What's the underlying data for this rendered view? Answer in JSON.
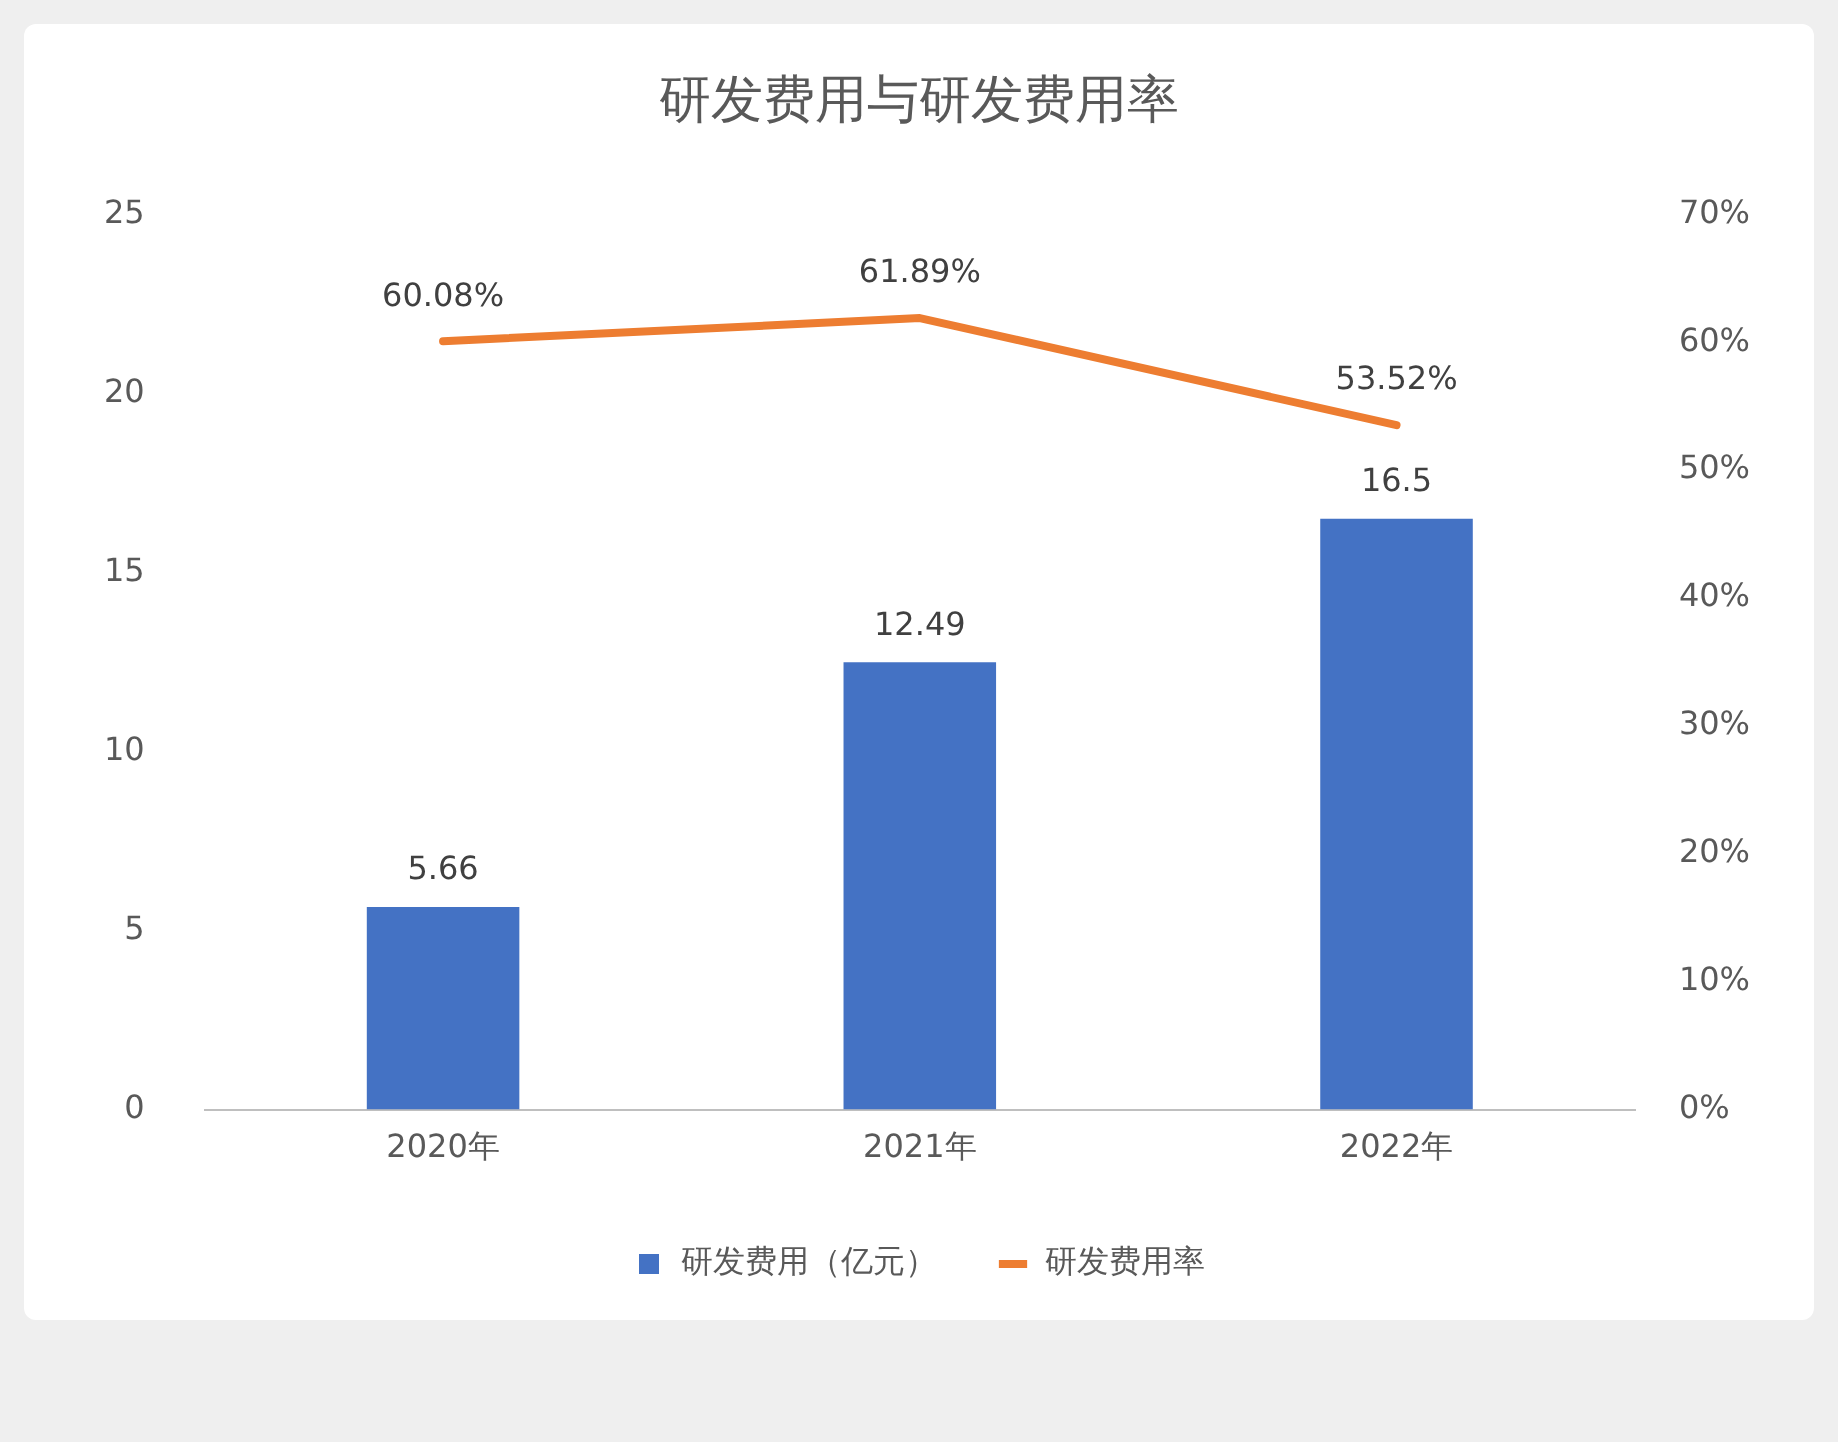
{
  "chart_data": {
    "type": "bar",
    "title": "研发费用与研发费用率",
    "categories": [
      "2020年",
      "2021年",
      "2022年"
    ],
    "series": [
      {
        "name": "研发费用（亿元）",
        "color": "#4472c4",
        "values": [
          5.66,
          12.49,
          16.5
        ],
        "value_labels": [
          "5.66",
          "12.49",
          "16.5"
        ]
      },
      {
        "name": "研发费用率",
        "type": "line",
        "axis": "y2",
        "color": "#ed7d31",
        "values": [
          60.08,
          61.89,
          53.52
        ],
        "value_labels": [
          "60.08%",
          "61.89%",
          "53.52%"
        ]
      }
    ],
    "ylim": [
      0,
      25
    ],
    "yticks": [
      0,
      5,
      10,
      15,
      20,
      25
    ],
    "y2lim": [
      0,
      70
    ],
    "y2ticks": [
      {
        "value": 0,
        "label": "0%"
      },
      {
        "value": 10,
        "label": "10%"
      },
      {
        "value": 20,
        "label": "20%"
      },
      {
        "value": 30,
        "label": "30%"
      },
      {
        "value": 40,
        "label": "40%"
      },
      {
        "value": 50,
        "label": "50%"
      },
      {
        "value": 60,
        "label": "60%"
      },
      {
        "value": 70,
        "label": "70%"
      }
    ],
    "grid": false,
    "legend": "bottom",
    "marker": "none",
    "line_style": "solid"
  }
}
